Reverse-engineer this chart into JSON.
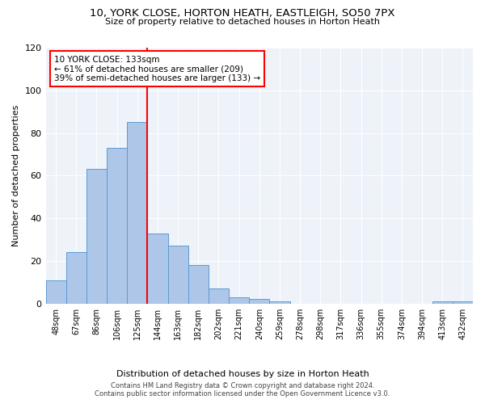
{
  "title": "10, YORK CLOSE, HORTON HEATH, EASTLEIGH, SO50 7PX",
  "subtitle": "Size of property relative to detached houses in Horton Heath",
  "xlabel": "Distribution of detached houses by size in Horton Heath",
  "ylabel": "Number of detached properties",
  "categories": [
    "48sqm",
    "67sqm",
    "86sqm",
    "106sqm",
    "125sqm",
    "144sqm",
    "163sqm",
    "182sqm",
    "202sqm",
    "221sqm",
    "240sqm",
    "259sqm",
    "278sqm",
    "298sqm",
    "317sqm",
    "336sqm",
    "355sqm",
    "374sqm",
    "394sqm",
    "413sqm",
    "432sqm"
  ],
  "values": [
    11,
    24,
    63,
    73,
    85,
    33,
    27,
    18,
    7,
    3,
    2,
    1,
    0,
    0,
    0,
    0,
    0,
    0,
    0,
    1,
    1
  ],
  "bar_color": "#aec6e8",
  "bar_edge_color": "#5b9bd5",
  "ylim": [
    0,
    120
  ],
  "yticks": [
    0,
    20,
    40,
    60,
    80,
    100,
    120
  ],
  "property_size_label": "10 YORK CLOSE: 133sqm",
  "annotation_line1": "← 61% of detached houses are smaller (209)",
  "annotation_line2": "39% of semi-detached houses are larger (133) →",
  "vline_position": 4.5,
  "background_color": "#eef2f9",
  "footer_line1": "Contains HM Land Registry data © Crown copyright and database right 2024.",
  "footer_line2": "Contains public sector information licensed under the Open Government Licence v3.0."
}
